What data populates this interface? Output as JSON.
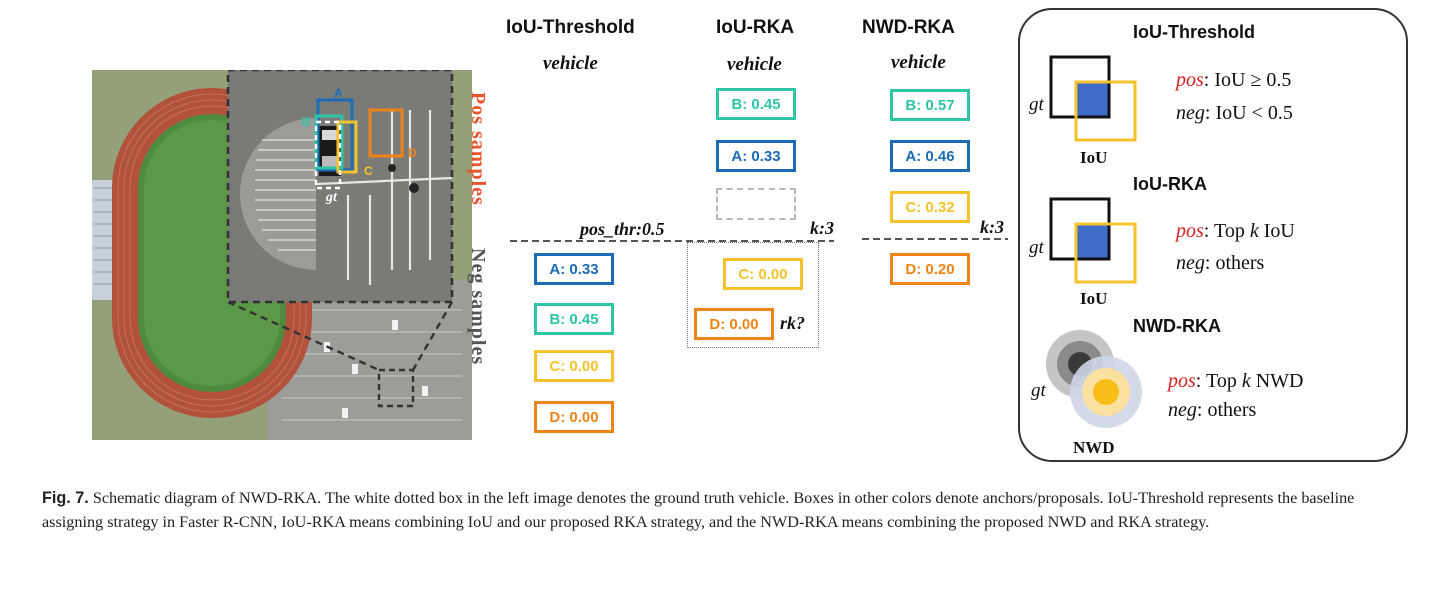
{
  "columns": [
    {
      "title": "IoU-Threshold",
      "subtitle": "vehicle"
    },
    {
      "title": "IoU-RKA",
      "subtitle": "vehicle"
    },
    {
      "title": "NWD-RKA",
      "subtitle": "vehicle"
    }
  ],
  "image_labels": {
    "pos": "Pos samples",
    "neg": "Neg samples",
    "gt": "gt",
    "A": "A",
    "B": "B",
    "C": "C",
    "D": "D"
  },
  "thresholds": {
    "iou_threshold": "pos_thr:0.5",
    "iou_rka": "k:3",
    "nwd_rka": "k:3",
    "rk": "rk?"
  },
  "iou_threshold_boxes": [
    "A: 0.33",
    "B: 0.45",
    "C: 0.00",
    "D: 0.00"
  ],
  "iou_rka_boxes": {
    "pos": [
      "B: 0.45",
      "A: 0.33"
    ],
    "neg": [
      "C: 0.00",
      "D: 0.00"
    ]
  },
  "nwd_rka_boxes": {
    "pos": [
      "B: 0.57",
      "A: 0.46",
      "C: 0.32"
    ],
    "neg": [
      "D: 0.20"
    ]
  },
  "legend": {
    "iou_threshold": {
      "title": "IoU-Threshold",
      "pos_kw": "pos",
      "pos_rule": ": IoU ≥ 0.5",
      "neg_kw": "neg",
      "neg_rule": ": IoU < 0.5",
      "caption": "IoU",
      "gt": "gt"
    },
    "iou_rka": {
      "title": "IoU-RKA",
      "pos_kw": "pos",
      "pos_rule_a": ": Top ",
      "pos_k": "k",
      "pos_rule_b": " IoU",
      "neg_kw": "neg",
      "neg_rule": ": others",
      "caption": "IoU",
      "gt": "gt"
    },
    "nwd_rka": {
      "title": "NWD-RKA",
      "pos_kw": "pos",
      "pos_rule_a": ": Top ",
      "pos_k": "k",
      "pos_rule_b": " NWD",
      "neg_kw": "neg",
      "neg_rule": ": others",
      "caption": "NWD",
      "gt": "gt"
    }
  },
  "caption": {
    "label": "Fig. 7.",
    "text": " Schematic diagram of NWD-RKA. The white dotted box in the left image denotes the ground truth vehicle. Boxes in other colors denote anchors/proposals. IoU-Threshold represents the baseline assigning strategy in Faster R-CNN, IoU-RKA means combining IoU and our proposed RKA strategy, and the NWD-RKA means combining the proposed NWD and RKA strategy."
  },
  "colors": {
    "teal": "#2ec4a6",
    "blue": "#1b6bb5",
    "yellow": "#f6c22b",
    "orange": "#ee8417",
    "pos_label": "#e8542b",
    "neg_label": "#555555",
    "keyword": "#d62020"
  }
}
